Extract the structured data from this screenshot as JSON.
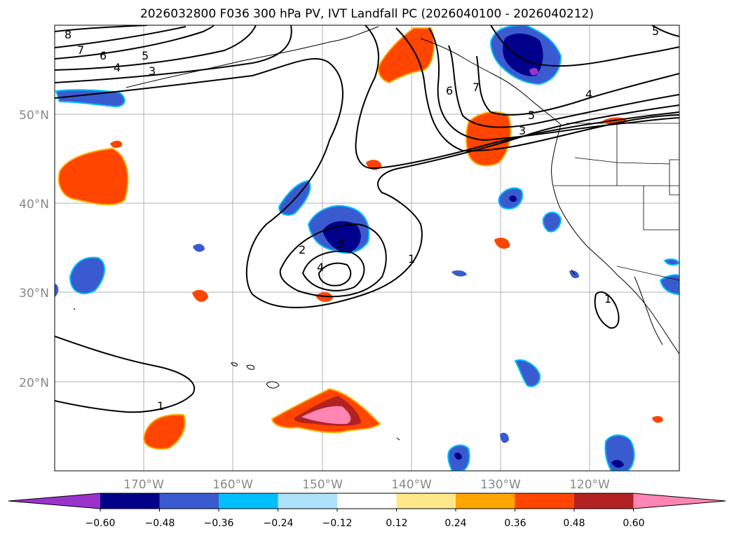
{
  "title": "2026032800 F036 300 hPa PV, IVT Landfall PC (2026040100 - 2026040212)",
  "map": {
    "lat_labels": [
      "50°N",
      "40°N",
      "30°N",
      "20°N"
    ],
    "lon_labels": [
      "170°W",
      "160°W",
      "150°W",
      "140°W",
      "130°W",
      "120°W"
    ],
    "contour_labels": [
      "8",
      "7",
      "6",
      "5",
      "4",
      "3",
      "6",
      "7",
      "5",
      "4",
      "3",
      "2",
      "3",
      "4",
      "1",
      "1",
      "1",
      "5"
    ]
  },
  "colorbar": {
    "ticks": [
      "−0.60",
      "−0.48",
      "−0.36",
      "−0.24",
      "−0.12",
      "0.12",
      "0.24",
      "0.36",
      "0.48",
      "0.60"
    ],
    "colors": [
      "#9933cc",
      "#00008b",
      "#3a5bcf",
      "#00bfff",
      "#ade3fa",
      "#ffffff",
      "#ffe88a",
      "#ffa500",
      "#ff4500",
      "#b22222",
      "#ff85b3"
    ]
  },
  "colors": {
    "neg_strong": "#00008b",
    "neg_mid": "#3a5bcf",
    "neg_light": "#00bfff",
    "pos_orange": "#ff4500",
    "pos_red": "#b22222",
    "pos_pink": "#ff85b3"
  }
}
